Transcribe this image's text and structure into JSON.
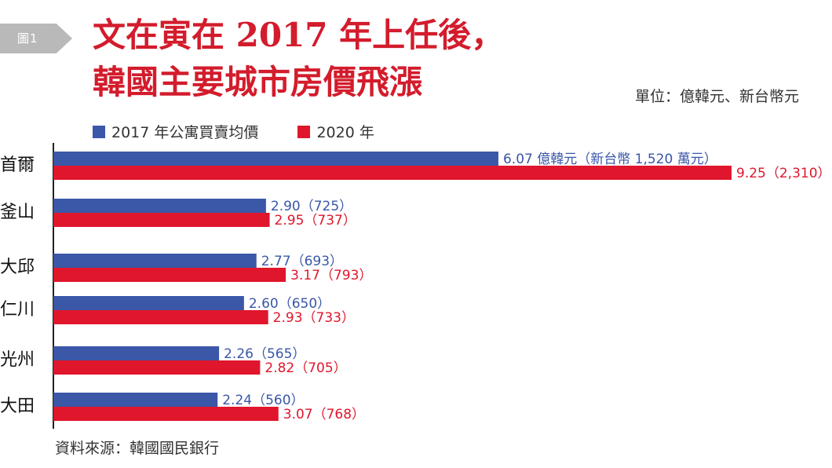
{
  "badge": "圖1",
  "title": [
    "文在寅在 2017 年上任後，",
    "韓國主要城市房價飛漲"
  ],
  "unit": "單位：億韓元、新台幣元",
  "source": "資料來源：韓國國民銀行",
  "colors": {
    "series_2017": "#3a57a8",
    "series_2020": "#e0162c",
    "title": "#d31c2c"
  },
  "chart_data": {
    "type": "bar",
    "orientation": "horizontal",
    "categories": [
      "首爾",
      "釜山",
      "大邱",
      "仁川",
      "光州",
      "大田"
    ],
    "series": [
      {
        "name": "2017 年公寓買賣均價",
        "values": [
          6.07,
          2.9,
          2.77,
          2.6,
          2.26,
          2.24
        ],
        "labels": [
          "6.07 億韓元（新台幣 1,520 萬元）",
          "2.90（725）",
          "2.77（693）",
          "2.60（650）",
          "2.26（565）",
          "2.24（560）"
        ]
      },
      {
        "name": "2020 年",
        "values": [
          9.25,
          2.95,
          3.17,
          2.93,
          2.82,
          3.07
        ],
        "labels": [
          "9.25（2,310）",
          "2.95（737）",
          "3.17（793）",
          "2.93（733）",
          "2.82（705）",
          "3.07（768）"
        ]
      }
    ],
    "xlim": [
      0,
      9.25
    ],
    "grid": false,
    "legend": "top-left"
  }
}
